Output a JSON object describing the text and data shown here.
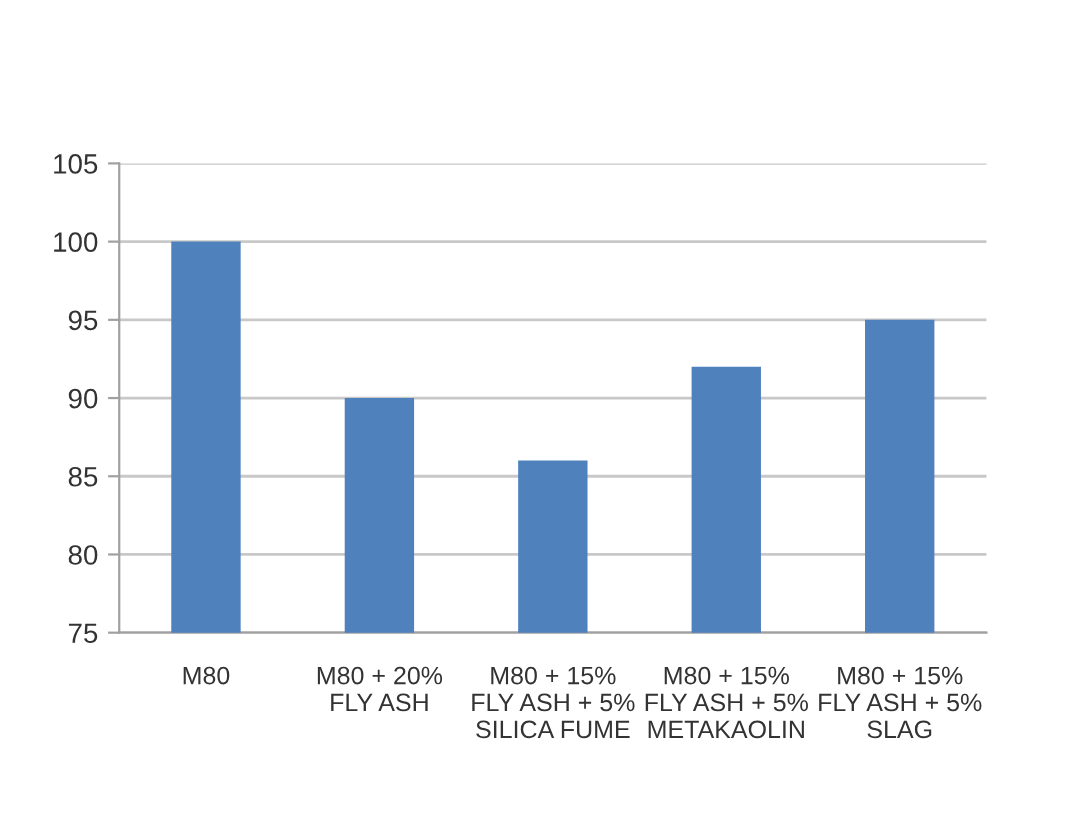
{
  "chart_data": {
    "type": "bar",
    "categories": [
      "M80",
      "M80 + 20%\nFLY ASH",
      "M80 + 15%\nFLY ASH + 5%\nSILICA FUME",
      "M80 + 15%\nFLY ASH + 5%\nMETAKAOLIN",
      "M80 + 15%\nFLY ASH + 5%\nSLAG"
    ],
    "values": [
      100,
      90,
      86,
      92,
      95
    ],
    "color": "#4f81bd",
    "ylim": [
      75,
      105
    ],
    "yticks": [
      75,
      80,
      85,
      90,
      95,
      100,
      105
    ],
    "grid": "y"
  }
}
